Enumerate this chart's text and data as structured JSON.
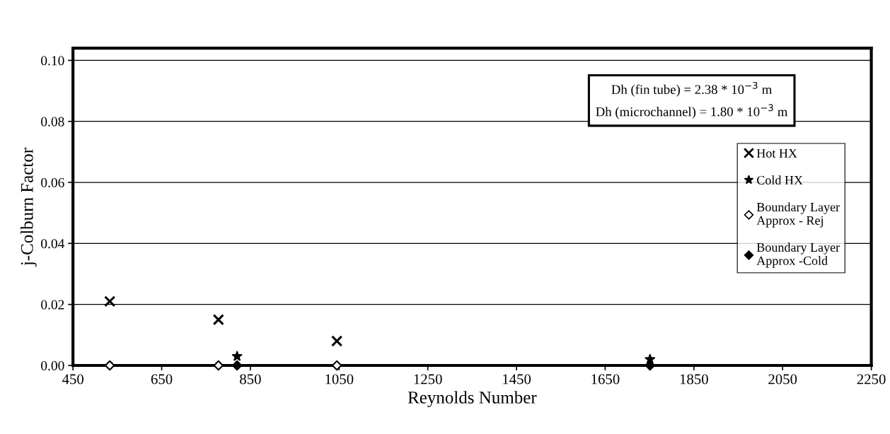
{
  "chart_data": {
    "type": "scatter",
    "xlabel": "Reynolds Number",
    "ylabel": "j-Colburn Factor",
    "xlim": [
      450,
      2250
    ],
    "xticks": [
      450,
      650,
      850,
      1050,
      1250,
      1450,
      1650,
      1850,
      2050,
      2250
    ],
    "ylim": [
      0,
      0.104
    ],
    "yticks": [
      {
        "value": 0,
        "label": "0.00"
      },
      {
        "value": 0.02,
        "label": "0.02"
      },
      {
        "value": 0.04,
        "label": "0.04"
      },
      {
        "value": 0.06,
        "label": "0.06"
      },
      {
        "value": 0.08,
        "label": "0.08"
      },
      {
        "value": 0.1,
        "label": "0.10"
      }
    ],
    "grid": "y",
    "legend": "right",
    "annotations": [
      "Dh (fin tube) = 2.38 * 10$^{−3}$ m\nDh (microchannel) = 1.80 * 10$^{−3}$ m"
    ],
    "series": [
      {
        "name": "Hot HX",
        "color": "#000000",
        "marker": "cross",
        "x": [
          533,
          778,
          1045
        ],
        "values": [
          0.021,
          0.015,
          0.008
        ]
      },
      {
        "name": "Cold HX",
        "color": "#000000",
        "marker": "star",
        "x": [
          820,
          1751
        ],
        "values": [
          0.003,
          0.002
        ]
      },
      {
        "name": "Boundary Layer\nApprox - Rej",
        "color": "#ffffff",
        "marker": "diamond",
        "x": [
          533,
          778,
          1045
        ],
        "values": [
          0,
          0,
          0
        ]
      },
      {
        "name": "Boundary Layer\nApprox -Cold",
        "color": "#000000",
        "marker": "diamond",
        "x": [
          820,
          1751
        ],
        "values": [
          0,
          0
        ]
      }
    ]
  }
}
